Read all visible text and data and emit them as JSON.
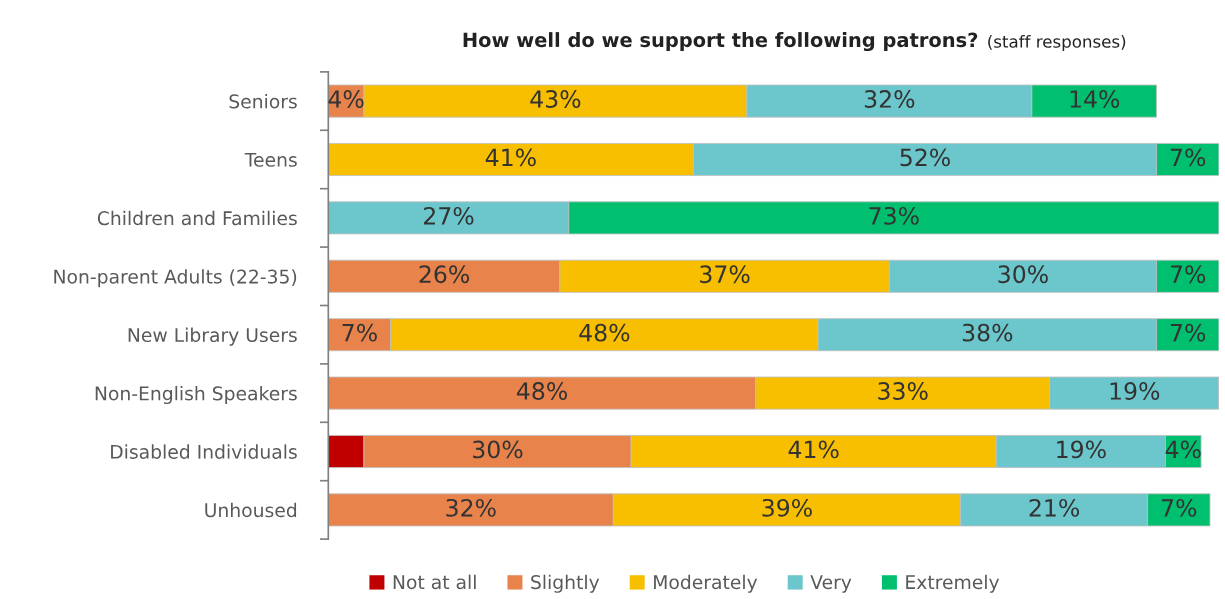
{
  "chart_data": {
    "type": "bar",
    "orientation": "horizontal",
    "stacked": true,
    "title": "How well do we support the following patrons?",
    "subtitle": "(staff responses)",
    "categories": [
      "Seniors",
      "Teens",
      "Children and Families",
      "Non-parent Adults (22-35)",
      "New Library Users",
      "Non-English Speakers",
      "Disabled Individuals",
      "Unhoused"
    ],
    "series": [
      {
        "name": "Not at all",
        "color": "#c00000",
        "values": [
          null,
          null,
          null,
          null,
          null,
          null,
          4,
          null
        ],
        "value_labels": [
          null,
          null,
          null,
          null,
          null,
          null,
          null,
          null
        ]
      },
      {
        "name": "Slightly",
        "color": "#e8834c",
        "values": [
          4,
          null,
          null,
          26,
          7,
          48,
          30,
          32
        ],
        "value_labels": [
          "4%",
          null,
          null,
          "26%",
          "7%",
          "48%",
          "30%",
          "32%"
        ]
      },
      {
        "name": "Moderately",
        "color": "#f8be00",
        "values": [
          43,
          41,
          null,
          37,
          48,
          33,
          41,
          39
        ],
        "value_labels": [
          "43%",
          "41%",
          null,
          "37%",
          "48%",
          "33%",
          "41%",
          "39%"
        ]
      },
      {
        "name": "Very",
        "color": "#6bc7cb",
        "values": [
          32,
          52,
          27,
          30,
          38,
          19,
          19,
          21
        ],
        "value_labels": [
          "32%",
          "52%",
          "27%",
          "30%",
          "38%",
          "19%",
          "19%",
          "21%"
        ]
      },
      {
        "name": "Extremely",
        "color": "#00bf6f",
        "values": [
          14,
          7,
          73,
          7,
          7,
          null,
          4,
          7
        ],
        "value_labels": [
          "14%",
          "7%",
          "73%",
          "7%",
          "7%",
          null,
          "4%",
          "7%"
        ]
      }
    ],
    "tick_labels": "y",
    "grid": false,
    "legend": "bottom"
  }
}
